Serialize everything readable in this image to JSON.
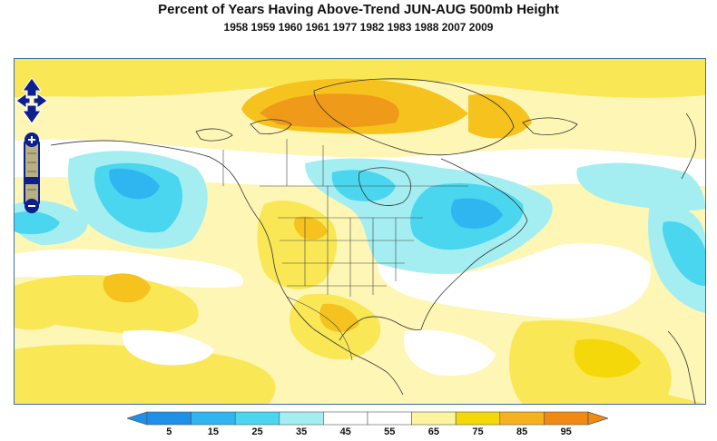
{
  "title": "Percent of Years Having Above-Trend JUN-AUG 500mb Height",
  "subtitle": "1958 1959 1960 1961 1977 1982 1983 1988 2007 2009",
  "colorbar": {
    "labels": [
      "5",
      "15",
      "25",
      "35",
      "45",
      "55",
      "65",
      "75",
      "85",
      "95"
    ],
    "colors": [
      "#1e90e8",
      "#2fb6f0",
      "#4ad6ee",
      "#a4eef2",
      "#ffffff",
      "#ffffff",
      "#fdf4a0",
      "#f5d80a",
      "#f5b21e",
      "#f08a12"
    ]
  },
  "map": {
    "ocean_shading": "#fdfbd0",
    "land_lines": "#333333",
    "frame_border": "#3d6ea8"
  },
  "controls": {
    "pan_icon": "pan-arrows-icon",
    "zoom_in_icon": "plus-icon",
    "zoom_out_icon": "minus-icon",
    "accent": "#0d1f8c"
  }
}
